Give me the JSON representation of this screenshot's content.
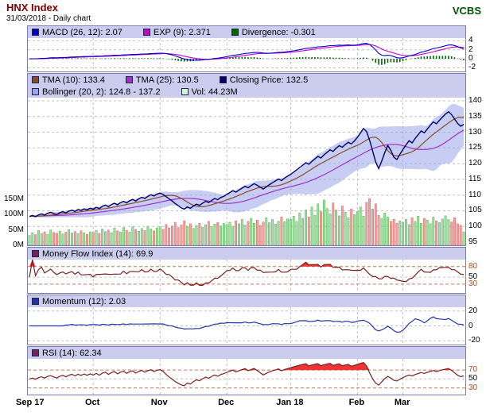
{
  "header": {
    "title": "HNX Index",
    "subtitle": "31/03/2018 - Daily chart",
    "brand": "VCBS"
  },
  "colors": {
    "title": "#7a0000",
    "brand": "#005500",
    "legend_bg": "#ccccee",
    "panel_border": "#7b7bb0",
    "grid": "#c0c0c0",
    "threshold_line": "#cc7755",
    "threshold_text": "#cc4400"
  },
  "chart_data": {
    "type": "line",
    "title": "HNX Index - Daily chart",
    "x_axis": {
      "labels": [
        "Sep 17",
        "Oct",
        "Nov",
        "Dec",
        "Jan 18",
        "Feb",
        "Mar"
      ],
      "month_start_day": [
        0,
        21,
        43,
        65,
        86,
        108,
        123
      ],
      "total_days": 144
    },
    "series": {
      "close": [
        103.2,
        103.5,
        103.1,
        103.7,
        104.0,
        103.6,
        104.2,
        104.5,
        104.1,
        103.8,
        104.4,
        104.7,
        104.3,
        104.9,
        105.2,
        104.8,
        105.4,
        105.1,
        105.6,
        105.3,
        105.8,
        105.5,
        106.1,
        105.7,
        106.4,
        106.8,
        106.3,
        107.0,
        107.4,
        106.9,
        107.6,
        108.0,
        107.5,
        108.2,
        108.6,
        108.1,
        108.8,
        109.3,
        108.9,
        109.6,
        110.1,
        109.7,
        110.3,
        110.6,
        110.2,
        109.5,
        108.8,
        108.1,
        107.3,
        106.6,
        105.9,
        105.5,
        106.2,
        105.8,
        106.5,
        107.1,
        106.7,
        107.4,
        108.0,
        107.6,
        108.3,
        108.9,
        108.5,
        109.2,
        109.6,
        110.2,
        110.8,
        111.4,
        110.9,
        111.6,
        112.2,
        112.8,
        112.3,
        113.0,
        113.6,
        113.1,
        112.5,
        111.9,
        112.6,
        113.3,
        113.9,
        114.5,
        115.1,
        114.6,
        115.4,
        116.0,
        116.6,
        117.3,
        118.0,
        118.8,
        119.5,
        120.3,
        119.8,
        120.7,
        121.5,
        122.3,
        121.8,
        122.8,
        123.6,
        124.4,
        123.9,
        124.9,
        125.7,
        125.2,
        126.1,
        126.8,
        126.3,
        127.2,
        128.4,
        129.8,
        131.2,
        130.2,
        127.5,
        124.0,
        120.5,
        118.4,
        120.8,
        123.5,
        125.8,
        124.2,
        122.0,
        121.3,
        123.0,
        124.5,
        126.0,
        127.3,
        126.6,
        128.0,
        129.2,
        130.4,
        129.8,
        131.0,
        132.2,
        133.3,
        132.7,
        133.8,
        134.8,
        135.8,
        136.5,
        135.6,
        134.2,
        132.8,
        131.9,
        132.5
      ],
      "volume_m": [
        32,
        41,
        35,
        48,
        38,
        44,
        36,
        50,
        42,
        39,
        46,
        37,
        43,
        51,
        40,
        45,
        38,
        47,
        41,
        36,
        44,
        42,
        48,
        39,
        53,
        45,
        50,
        41,
        56,
        47,
        43,
        58,
        49,
        44,
        60,
        52,
        46,
        55,
        48,
        62,
        53,
        47,
        57,
        60,
        52,
        68,
        57,
        63,
        75,
        58,
        66,
        80,
        62,
        70,
        55,
        64,
        72,
        59,
        67,
        78,
        61,
        69,
        74,
        63,
        71,
        68,
        75,
        62,
        80,
        70,
        85,
        66,
        78,
        88,
        72,
        82,
        65,
        76,
        90,
        74,
        84,
        69,
        79,
        92,
        77,
        86,
        85,
        95,
        78,
        105,
        88,
        115,
        92,
        125,
        98,
        135,
        110,
        148,
        120,
        102,
        138,
        115,
        96,
        128,
        108,
        90,
        118,
        100,
        110,
        125,
        95,
        140,
        152,
        118,
        135,
        98,
        88,
        105,
        92,
        78,
        85,
        72,
        80,
        75,
        85,
        68,
        90,
        78,
        95,
        72,
        88,
        82,
        70,
        92,
        80,
        74,
        86,
        96,
        84,
        76,
        90,
        70,
        65,
        44
      ]
    },
    "panels": [
      {
        "id": "macd",
        "ylim": [
          -2.8,
          4.6
        ],
        "yticks": [
          {
            "v": 4,
            "label": "4"
          },
          {
            "v": 2,
            "label": "2"
          },
          {
            "v": 0,
            "label": "0"
          },
          {
            "v": -2,
            "label": "-2"
          }
        ],
        "legend": [
          {
            "color": "#0000cc",
            "label": "MACD (26, 12): 2.07"
          },
          {
            "color": "#cc00cc",
            "label": "EXP (9): 2.371"
          },
          {
            "color": "#006600",
            "label": "Divergence: -0.301"
          }
        ]
      },
      {
        "id": "price",
        "ylim": [
          94,
          141
        ],
        "yticks": [
          {
            "v": 140,
            "label": "140"
          },
          {
            "v": 135,
            "label": "135"
          },
          {
            "v": 130,
            "label": "130"
          },
          {
            "v": 125,
            "label": "125"
          },
          {
            "v": 120,
            "label": "120"
          },
          {
            "v": 115,
            "label": "115"
          },
          {
            "v": 110,
            "label": "110"
          },
          {
            "v": 105,
            "label": "105"
          },
          {
            "v": 100,
            "label": "100"
          },
          {
            "v": 95,
            "label": "95"
          }
        ],
        "vol_axis": {
          "labels": [
            "150M",
            "100M",
            "50M",
            "0M"
          ],
          "values": [
            150,
            100,
            50,
            0
          ],
          "max": 150
        },
        "vol_up": "#9fdf9f",
        "vol_down": "#f2a0a0",
        "vol_up_edge": "#3f9f3f",
        "vol_down_edge": "#cc5555",
        "legend_row1": [
          {
            "color": "#8a4a2a",
            "label": "TMA (10): 133.4"
          },
          {
            "color": "#a22fc6",
            "label": "TMA (25): 130.5"
          },
          {
            "color": "#000066",
            "label": "Closing Price: 132.5"
          }
        ],
        "legend_row2": [
          {
            "color": "#9aa4ea",
            "label": "Bollinger (20, 2): 124.8 - 137.2"
          },
          {
            "color": "#ccffcc",
            "label": "Vol: 44.23M"
          }
        ]
      },
      {
        "id": "mfi",
        "ylim": [
          5,
          100
        ],
        "thresholds": [
          80,
          30
        ],
        "line": "#7a1f1f",
        "fill": "#ee3333",
        "yticks": [
          {
            "v": 80,
            "label": "80",
            "warn": true
          },
          {
            "v": 50,
            "label": "50"
          },
          {
            "v": 30,
            "label": "30",
            "warn": true
          }
        ],
        "legend": [
          {
            "color": "#7a1f5a",
            "label": "Money Flow Index (14): 69.9"
          }
        ]
      },
      {
        "id": "momentum",
        "ylim": [
          -25,
          25
        ],
        "yticks": [
          {
            "v": 20,
            "label": "20"
          },
          {
            "v": 0,
            "label": "0"
          },
          {
            "v": -20,
            "label": "-20"
          }
        ],
        "legend": [
          {
            "color": "#2233aa",
            "label": "Momentum (12): 2.03"
          }
        ]
      },
      {
        "id": "rsi",
        "ylim": [
          15,
          95
        ],
        "thresholds": [
          70,
          30
        ],
        "line": "#7a1f1f",
        "fill": "#ee3333",
        "yticks": [
          {
            "v": 70,
            "label": "70",
            "warn": true
          },
          {
            "v": 50,
            "label": "50"
          },
          {
            "v": 30,
            "label": "30",
            "warn": true
          }
        ],
        "legend": [
          {
            "color": "#7a1f5a",
            "label": "RSI (14): 62.34"
          }
        ]
      }
    ]
  }
}
